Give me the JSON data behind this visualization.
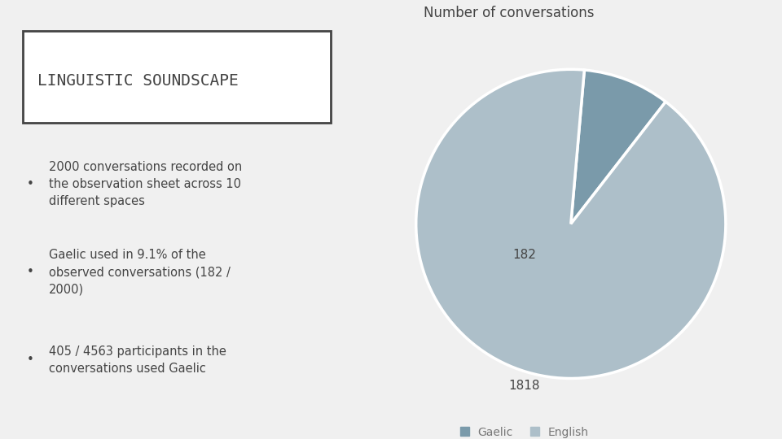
{
  "title": "LINGUISTIC SOUNDSCAPE",
  "pie_title": "Number of conversations",
  "values": [
    182,
    1818
  ],
  "labels": [
    "Gaelic",
    "English"
  ],
  "colors": [
    "#7a9aaa",
    "#adbfc9"
  ],
  "label_colors": [
    "#7a9aaa",
    "#adbfc9"
  ],
  "wedge_labels": [
    "182",
    "1818"
  ],
  "bullet_points": [
    "2000 conversations recorded on\nthe observation sheet across 10\ndifferent spaces",
    "Gaelic used in 9.1% of the\nobserved conversations (182 /\n2000)",
    "405 / 4563 participants in the\nconversations used Gaelic"
  ],
  "bg_color": "#f0f0f0",
  "text_color": "#444444",
  "box_color": "#ffffff",
  "legend_text_color": "#777777"
}
